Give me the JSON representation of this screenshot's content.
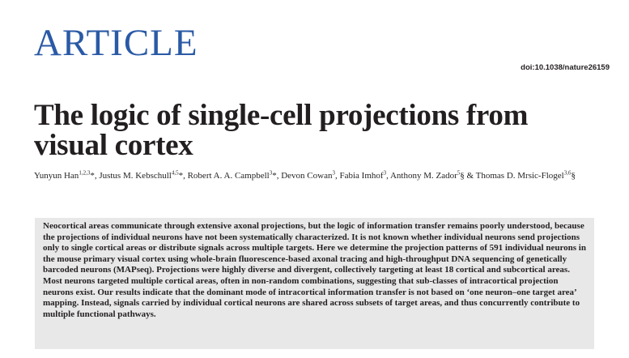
{
  "header": {
    "section_label": "ARTICLE",
    "doi": "doi:10.1038/nature26159"
  },
  "article": {
    "title": "The logic of single-cell projections from visual cortex",
    "authors": [
      {
        "name": "Yunyun Han",
        "sup": "1,2,3",
        "mark": "*",
        "sep": ", "
      },
      {
        "name": "Justus M. Kebschull",
        "sup": "4,5",
        "mark": "*",
        "sep": ", "
      },
      {
        "name": "Robert A. A. Campbell",
        "sup": "3",
        "mark": "*",
        "sep": ", "
      },
      {
        "name": "Devon Cowan",
        "sup": "3",
        "mark": "",
        "sep": ", "
      },
      {
        "name": "Fabia Imhof",
        "sup": "3",
        "mark": "",
        "sep": ", "
      },
      {
        "name": "Anthony M. Zador",
        "sup": "5",
        "mark": "§",
        "sep": " & "
      },
      {
        "name": "Thomas D. Mrsic-Flogel",
        "sup": "3,6",
        "mark": "§",
        "sep": ""
      }
    ],
    "abstract": "Neocortical areas communicate through extensive axonal projections, but the logic of information transfer remains poorly understood, because the projections of individual neurons have not been systematically characterized. It is not known whether individual neurons send projections only to single cortical areas or distribute signals across multiple targets. Here we determine the projection patterns of 591 individual neurons in the mouse primary visual cortex using whole-brain fluorescence-based axonal tracing and high-throughput DNA sequencing of genetically barcoded neurons (MAPseq). Projections were highly diverse and divergent, collectively targeting at least 18 cortical and subcortical areas. Most neurons targeted multiple cortical areas, often in non-random combinations, suggesting that sub-classes of intracortical projection neurons exist. Our results indicate that the dominant mode of intracortical information transfer is not based on ‘one neuron–one target area’ mapping. Instead, signals carried by individual cortical neurons are shared across subsets of target areas, and thus concurrently contribute to multiple functional pathways."
  },
  "colors": {
    "section_label": "#2a5aa6",
    "abstract_background": "#e8e8e9",
    "text": "#231f20"
  }
}
